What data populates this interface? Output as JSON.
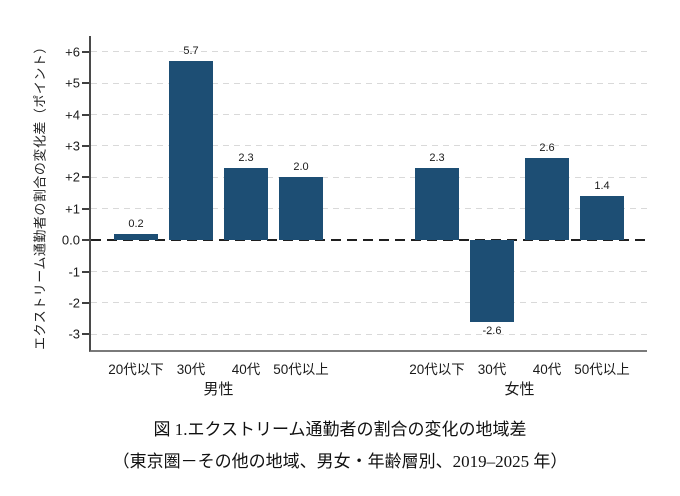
{
  "figure": {
    "caption_line1": "図 1.エクストリーム通勤者の割合の変化の地域差",
    "caption_line2": "（東京圏－その他の地域、男女・年齢層別、2019–2025 年）"
  },
  "chart_data": {
    "type": "bar",
    "title": "",
    "ylabel": "エクストリーム通勤者の割合の変化差（ポイント）",
    "xlabel": "",
    "ylim": [
      -3.5,
      6.5
    ],
    "grid": "light dashed horizontal gridlines at each integer tick",
    "zero_line": "bold dashed black horizontal line at 0",
    "legend": "none",
    "bar_color": "#1d4e74",
    "y_ticks": [
      {
        "value": 6,
        "label": "+6"
      },
      {
        "value": 5,
        "label": "+5"
      },
      {
        "value": 4,
        "label": "+4"
      },
      {
        "value": 3,
        "label": "+3"
      },
      {
        "value": 2,
        "label": "+2"
      },
      {
        "value": 1,
        "label": "+1"
      },
      {
        "value": 0,
        "label": "0.0"
      },
      {
        "value": -1,
        "label": "-1"
      },
      {
        "value": -2,
        "label": "-2"
      },
      {
        "value": -3,
        "label": "-3"
      }
    ],
    "groups": [
      {
        "label": "男性",
        "categories": [
          "20代以下",
          "30代",
          "40代",
          "50代以上"
        ],
        "values": [
          0.2,
          5.7,
          2.3,
          2.0
        ],
        "value_labels": [
          "0.2",
          "5.7",
          "2.3",
          "2.0"
        ]
      },
      {
        "label": "女性",
        "categories": [
          "20代以下",
          "30代",
          "40代",
          "50代以上"
        ],
        "values": [
          2.3,
          -2.6,
          2.6,
          1.4
        ],
        "value_labels": [
          "2.3",
          "-2.6",
          "2.6",
          "1.4"
        ]
      }
    ]
  }
}
